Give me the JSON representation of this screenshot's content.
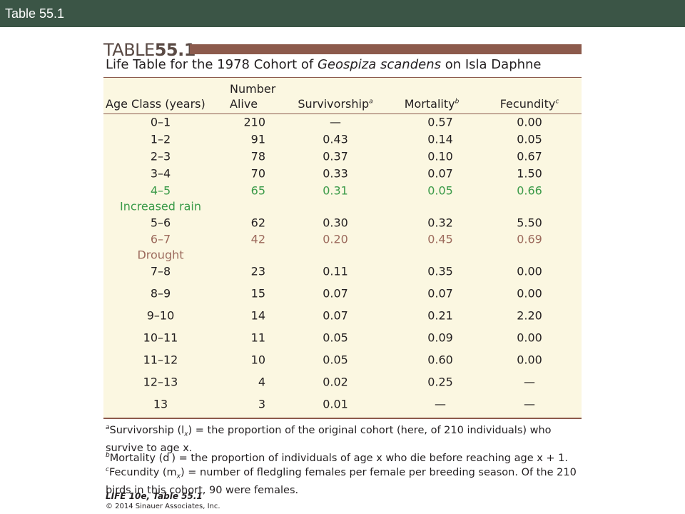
{
  "header": {
    "title": "Table 55.1"
  },
  "table": {
    "label": "TABLE",
    "number": "55.1",
    "title": {
      "before": "Life Table for the 1978 Cohort of ",
      "italic": "Geospiza scandens",
      "after": " on Isla Daphne"
    },
    "columns": [
      {
        "lines": [
          "Age Class (years)"
        ]
      },
      {
        "lines": [
          "Number",
          "Alive"
        ]
      },
      {
        "lines": [
          "Survivorship"
        ],
        "sup": "a"
      },
      {
        "lines": [
          "Mortality"
        ],
        "sup": "b"
      },
      {
        "lines": [
          "Fecundity"
        ],
        "sup": "c"
      }
    ],
    "rows": [
      {
        "cells": [
          "0–1",
          "210",
          "—",
          "0.57",
          "0.00"
        ]
      },
      {
        "cells": [
          "1–2",
          "91",
          "0.43",
          "0.14",
          "0.05"
        ]
      },
      {
        "cells": [
          "2–3",
          "78",
          "0.37",
          "0.10",
          "0.67"
        ]
      },
      {
        "cells": [
          "3–4",
          "70",
          "0.33",
          "0.07",
          "1.50"
        ]
      },
      {
        "cells": [
          "4–5",
          "65",
          "0.31",
          "0.05",
          "0.66"
        ],
        "note": "Increased rain",
        "color": "#3a9a48"
      },
      {
        "cells": [
          "5–6",
          "62",
          "0.30",
          "0.32",
          "5.50"
        ]
      },
      {
        "cells": [
          "6–7",
          "42",
          "0.20",
          "0.45",
          "0.69"
        ],
        "note": "Drought",
        "color": "#9c6a5c"
      },
      {
        "cells": [
          "7–8",
          "23",
          "0.11",
          "0.35",
          "0.00"
        ]
      },
      {
        "cells": [
          "8–9",
          "15",
          "0.07",
          "0.07",
          "0.00"
        ]
      },
      {
        "cells": [
          "9–10",
          "14",
          "0.07",
          "0.21",
          "2.20"
        ]
      },
      {
        "cells": [
          "10–11",
          "11",
          "0.05",
          "0.09",
          "0.00"
        ]
      },
      {
        "cells": [
          "11–12",
          "10",
          "0.05",
          "0.60",
          "0.00"
        ]
      },
      {
        "cells": [
          "12–13",
          "4",
          "0.02",
          "0.25",
          "—"
        ]
      },
      {
        "cells": [
          "13",
          "3",
          "0.01",
          "—",
          "—"
        ]
      }
    ],
    "footnotes": [
      {
        "mark": "a",
        "before": "Survivorship (l",
        "sub": "x",
        "after": ") = the proportion of the original cohort (here, of 210 individuals) who survive to age x."
      },
      {
        "mark": "b",
        "before": "Mortality (d",
        "sub": " ",
        "after": ") = the proportion of individuals of age x who die before reaching age x + 1."
      },
      {
        "mark": "c",
        "before": "Fecundity (m",
        "sub": "x",
        "after": ") = number of fledgling females per female per breeding season. Of the 210 birds in this cohort, 90 were females."
      }
    ],
    "credit": {
      "source": "LIFE 10e, Table 55.1",
      "copyright": "© 2014 Sinauer Associates, Inc."
    }
  }
}
